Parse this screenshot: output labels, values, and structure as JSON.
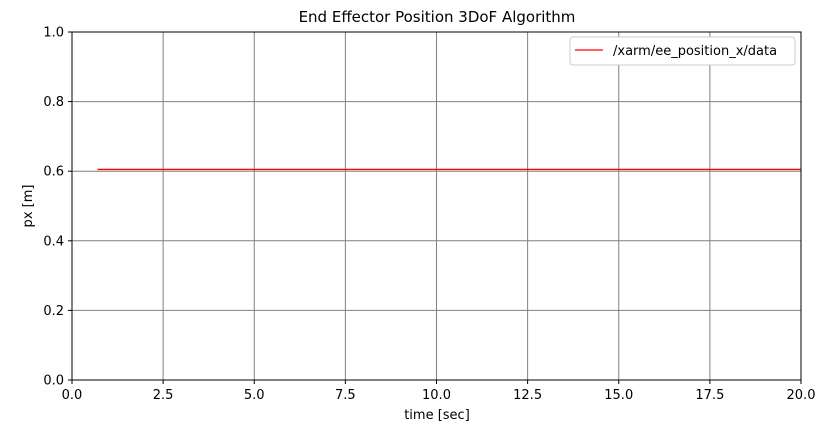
{
  "chart_data": {
    "type": "line",
    "title": "End Effector Position 3DoF Algorithm",
    "xlabel": "time [sec]",
    "ylabel": "px [m]",
    "xlim": [
      0.0,
      20.0
    ],
    "ylim": [
      0.0,
      1.0
    ],
    "xticks": [
      0.0,
      2.5,
      5.0,
      7.5,
      10.0,
      12.5,
      15.0,
      17.5,
      20.0
    ],
    "xtick_labels": [
      "0.0",
      "2.5",
      "5.0",
      "7.5",
      "10.0",
      "12.5",
      "15.0",
      "17.5",
      "20.0"
    ],
    "yticks": [
      0.0,
      0.2,
      0.4,
      0.6,
      0.8,
      1.0
    ],
    "ytick_labels": [
      "0.0",
      "0.2",
      "0.4",
      "0.6",
      "0.8",
      "1.0"
    ],
    "grid": true,
    "legend_position": "top-right",
    "series": [
      {
        "name": "/xarm/ee_position_x/data",
        "color": "#ff0000",
        "x": [
          0.7,
          20.0
        ],
        "y": [
          0.605,
          0.605
        ]
      }
    ]
  }
}
